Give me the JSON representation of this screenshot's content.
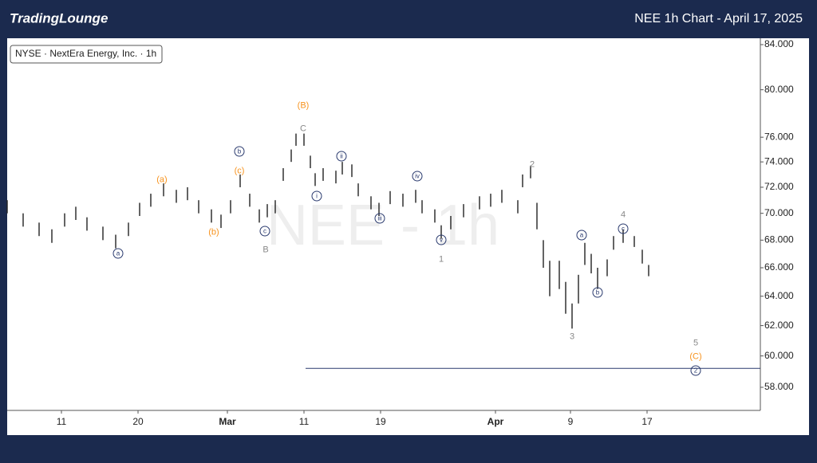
{
  "header": {
    "logo": "TradingLounge",
    "title": "NEE 1h Chart - April 17, 2025"
  },
  "chart_data": {
    "type": "range_bars",
    "legend_text": "NYSE · NextEra Energy, Inc. · 1h",
    "watermark": "NEE - 1h",
    "color": "#222222",
    "log_scale": true,
    "x": [
      0,
      10,
      20,
      28,
      36,
      43,
      50,
      60,
      68,
      76,
      83,
      90,
      98,
      106,
      113,
      120,
      128,
      134,
      140,
      146,
      152,
      158,
      163,
      168,
      173,
      178,
      181,
      186,
      190,
      193,
      198,
      206,
      210,
      216,
      220,
      228,
      233,
      240,
      248,
      256,
      260,
      268,
      272,
      278,
      286,
      296,
      303,
      310,
      320,
      323,
      328,
      332,
      336,
      340,
      346,
      350,
      354,
      358,
      362,
      366,
      370,
      376,
      380,
      386,
      393,
      398,
      402
    ],
    "high": [
      71.0,
      70.0,
      69.3,
      68.8,
      70.0,
      70.5,
      69.7,
      69.0,
      68.4,
      69.3,
      70.8,
      71.5,
      72.3,
      71.8,
      72.0,
      71.0,
      70.3,
      69.9,
      71.0,
      73.0,
      71.5,
      70.3,
      70.7,
      71.0,
      73.5,
      75.0,
      76.3,
      76.3,
      74.5,
      73.1,
      73.5,
      73.3,
      74.0,
      73.8,
      72.3,
      71.3,
      70.8,
      71.7,
      71.5,
      71.8,
      71.0,
      70.3,
      69.1,
      69.8,
      70.7,
      71.3,
      71.5,
      71.8,
      71.0,
      73.0,
      73.7,
      70.8,
      68.0,
      66.5,
      66.5,
      65.0,
      63.5,
      65.5,
      67.8,
      67.0,
      66.0,
      66.6,
      68.3,
      68.8,
      68.3,
      67.3,
      66.2
    ],
    "low": [
      70.0,
      69.0,
      68.3,
      67.8,
      69.0,
      69.5,
      68.7,
      68.0,
      67.4,
      68.3,
      69.8,
      70.5,
      71.3,
      70.8,
      71.0,
      70.0,
      69.3,
      68.9,
      70.0,
      72.0,
      70.5,
      69.3,
      69.7,
      70.0,
      72.5,
      74.0,
      75.3,
      75.3,
      73.5,
      72.1,
      72.5,
      72.3,
      73.0,
      72.8,
      71.3,
      70.3,
      69.8,
      70.7,
      70.5,
      70.8,
      70.0,
      69.3,
      68.1,
      68.8,
      69.7,
      70.3,
      70.5,
      70.8,
      70.0,
      72.0,
      72.7,
      68.8,
      66.0,
      64.0,
      64.5,
      62.8,
      61.8,
      63.5,
      66.2,
      65.6,
      64.5,
      65.4,
      67.3,
      67.8,
      67.5,
      66.3,
      65.4
    ],
    "xlim": [
      0,
      472
    ],
    "xticks": [
      {
        "value": 34,
        "label": "11"
      },
      {
        "value": 82,
        "label": "20"
      },
      {
        "value": 138,
        "label": "Mar"
      },
      {
        "value": 186,
        "label": "11"
      },
      {
        "value": 234,
        "label": "19"
      },
      {
        "value": 306,
        "label": "Apr"
      },
      {
        "value": 353,
        "label": "9"
      },
      {
        "value": 401,
        "label": "17"
      }
    ],
    "ylim": [
      56.57,
      84.58
    ],
    "yticks": [
      {
        "value": 84,
        "label": "84.000"
      },
      {
        "value": 80,
        "label": "80.000"
      },
      {
        "value": 76,
        "label": "76.000"
      },
      {
        "value": 74,
        "label": "74.000"
      },
      {
        "value": 72,
        "label": "72.000"
      },
      {
        "value": 70,
        "label": "70.000"
      },
      {
        "value": 68,
        "label": "68.000"
      },
      {
        "value": 66,
        "label": "66.000"
      },
      {
        "value": 64,
        "label": "64.000"
      },
      {
        "value": 62,
        "label": "62.000"
      },
      {
        "value": 60,
        "label": "60.000"
      },
      {
        "value": 58,
        "label": "58.000"
      }
    ],
    "level_line": {
      "value": 59.2,
      "from_x": 187
    },
    "annotations": [
      {
        "text": "(B)",
        "color": "#f7931e",
        "circled": false
      },
      {
        "text": "C",
        "color": "#888888",
        "circled": false
      },
      {
        "text": "(a)",
        "color": "#f7931e",
        "circled": false
      },
      {
        "text": "(c)",
        "color": "#f7931e",
        "circled": false
      },
      {
        "text": "(b)",
        "color": "#f7931e",
        "circled": false
      },
      {
        "text": "b",
        "color": "#2a3a6e",
        "circled": true
      },
      {
        "text": "a",
        "color": "#2a3a6e",
        "circled": true
      },
      {
        "text": "c",
        "color": "#2a3a6e",
        "circled": true
      },
      {
        "text": "B",
        "color": "#888888",
        "circled": false
      },
      {
        "text": "i",
        "color": "#2a3a6e",
        "circled": true
      },
      {
        "text": "ii",
        "color": "#2a3a6e",
        "circled": true
      },
      {
        "text": "iii",
        "color": "#2a3a6e",
        "circled": true
      },
      {
        "text": "iv",
        "color": "#2a3a6e",
        "circled": true
      },
      {
        "text": "v",
        "color": "#2a3a6e",
        "circled": true
      },
      {
        "text": "1",
        "color": "#888888",
        "circled": false
      },
      {
        "text": "2",
        "color": "#888888",
        "circled": false
      },
      {
        "text": "a",
        "color": "#2a3a6e",
        "circled": true
      },
      {
        "text": "3",
        "color": "#888888",
        "circled": false
      },
      {
        "text": "b",
        "color": "#2a3a6e",
        "circled": true
      },
      {
        "text": "c",
        "color": "#2a3a6e",
        "circled": true
      },
      {
        "text": "4",
        "color": "#888888",
        "circled": false
      },
      {
        "text": "5",
        "color": "#888888",
        "circled": false
      },
      {
        "text": "(C)",
        "color": "#f7931e",
        "circled": false
      },
      {
        "text": "2",
        "color": "#2a3a6e",
        "circled": true
      }
    ]
  }
}
